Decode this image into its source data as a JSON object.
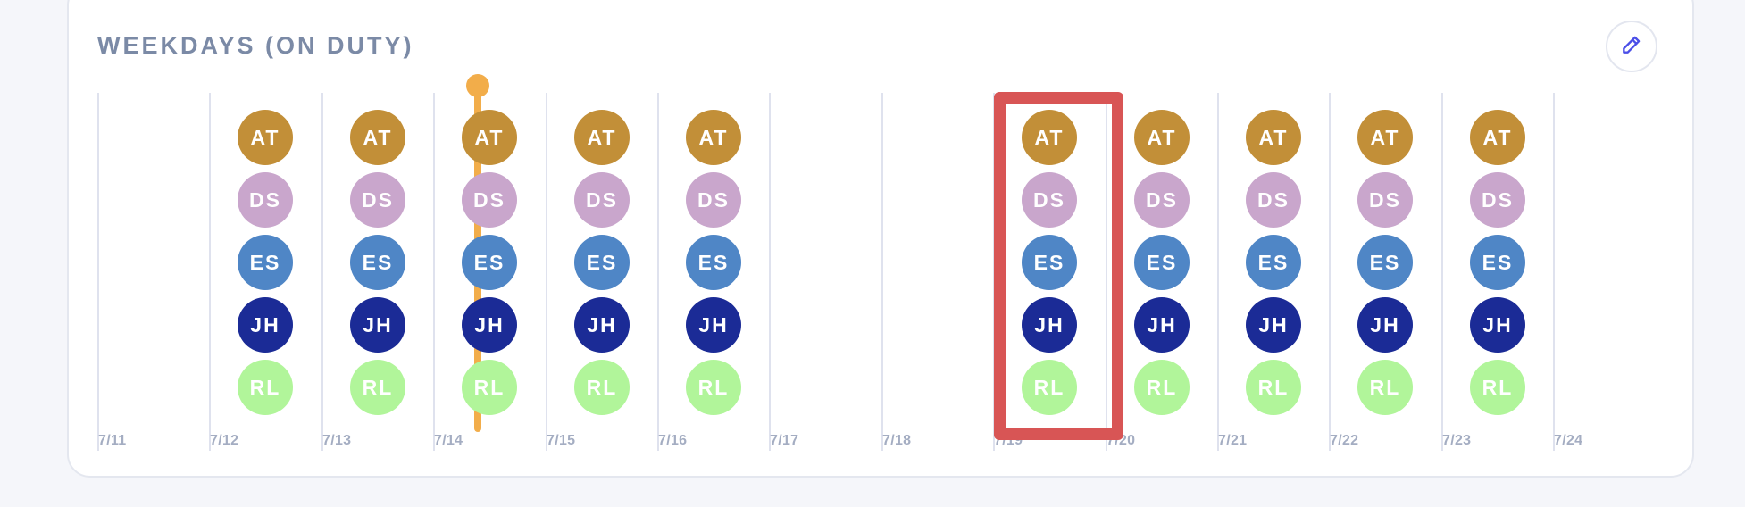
{
  "section": {
    "title": "WEEKDAYS (ON DUTY)",
    "edit_icon": "pencil-icon"
  },
  "colors": {
    "AT": "#c28f38",
    "DS": "#c9a6cc",
    "ES": "#4f86c6",
    "JH": "#1b2b96",
    "RL": "#b1f59a",
    "now_marker": "#f2ad4a",
    "highlight": "#d85555",
    "accent": "#4b4fe8"
  },
  "people": [
    "AT",
    "DS",
    "ES",
    "JH",
    "RL"
  ],
  "days": [
    {
      "label": "7/11",
      "on_duty": []
    },
    {
      "label": "7/12",
      "on_duty": [
        "AT",
        "DS",
        "ES",
        "JH",
        "RL"
      ]
    },
    {
      "label": "7/13",
      "on_duty": [
        "AT",
        "DS",
        "ES",
        "JH",
        "RL"
      ]
    },
    {
      "label": "7/14",
      "on_duty": [
        "AT",
        "DS",
        "ES",
        "JH",
        "RL"
      ]
    },
    {
      "label": "7/15",
      "on_duty": [
        "AT",
        "DS",
        "ES",
        "JH",
        "RL"
      ]
    },
    {
      "label": "7/16",
      "on_duty": [
        "AT",
        "DS",
        "ES",
        "JH",
        "RL"
      ]
    },
    {
      "label": "7/17",
      "on_duty": []
    },
    {
      "label": "7/18",
      "on_duty": []
    },
    {
      "label": "7/19",
      "on_duty": [
        "AT",
        "DS",
        "ES",
        "JH",
        "RL"
      ]
    },
    {
      "label": "7/20",
      "on_duty": [
        "AT",
        "DS",
        "ES",
        "JH",
        "RL"
      ]
    },
    {
      "label": "7/21",
      "on_duty": [
        "AT",
        "DS",
        "ES",
        "JH",
        "RL"
      ]
    },
    {
      "label": "7/22",
      "on_duty": [
        "AT",
        "DS",
        "ES",
        "JH",
        "RL"
      ]
    },
    {
      "label": "7/23",
      "on_duty": [
        "AT",
        "DS",
        "ES",
        "JH",
        "RL"
      ]
    },
    {
      "label": "7/24",
      "on_duty": []
    }
  ],
  "current_day": "7/14",
  "highlighted_day": "7/19"
}
